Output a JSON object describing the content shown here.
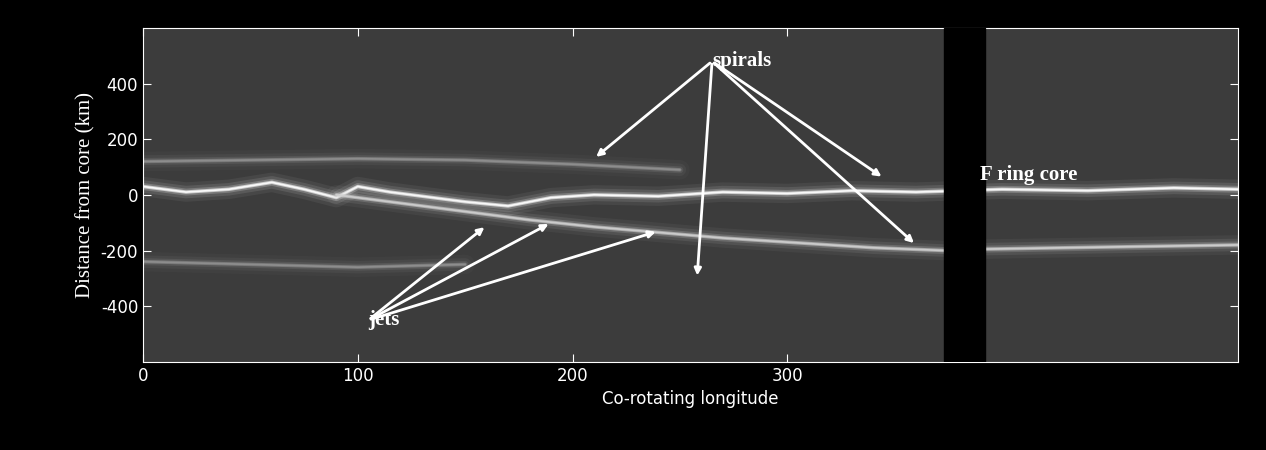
{
  "chart_data": {
    "type": "line",
    "xlabel": "Co-rotating longitude",
    "ylabel": "Distance from core (km)",
    "xlim": [
      0,
      510
    ],
    "xticks": [
      0,
      100,
      200,
      300
    ],
    "ylim": [
      -600,
      600
    ],
    "yticks": [
      -400,
      -200,
      0,
      200,
      400
    ],
    "gap": [
      373,
      392
    ],
    "color": "#ffffff",
    "series": [
      {
        "color": "#ffffff",
        "x": [
          0,
          20,
          40,
          60,
          75,
          90,
          100,
          115,
          130,
          150,
          170,
          190,
          210,
          240,
          270,
          300,
          330,
          360,
          400,
          440,
          480,
          510
        ],
        "values": [
          30,
          10,
          20,
          45,
          20,
          -10,
          30,
          10,
          -5,
          -25,
          -40,
          -10,
          0,
          -5,
          10,
          5,
          15,
          10,
          20,
          15,
          25,
          20
        ]
      },
      {
        "color": "#d0d0d0",
        "x": [
          90,
          120,
          150,
          180,
          210,
          240,
          270,
          300,
          340,
          373,
          392,
          430,
          470,
          510
        ],
        "values": [
          0,
          -30,
          -60,
          -90,
          -115,
          -135,
          -155,
          -170,
          -190,
          -200,
          -195,
          -190,
          -185,
          -180
        ]
      },
      {
        "color": "#909090",
        "x": [
          0,
          50,
          100,
          150,
          200,
          250
        ],
        "values": [
          120,
          125,
          130,
          125,
          110,
          90
        ]
      },
      {
        "color": "#909090",
        "x": [
          0,
          50,
          100,
          150
        ],
        "values": [
          -240,
          -250,
          -260,
          -250
        ]
      }
    ],
    "annotations": [
      {
        "text": "spirals",
        "x": 265,
        "y": 480,
        "targets": [
          [
            210,
            130
          ],
          [
            258,
            -300
          ],
          [
            345,
            60
          ],
          [
            360,
            -180
          ]
        ]
      },
      {
        "text": "jets",
        "x": 105,
        "y": -450,
        "targets": [
          [
            160,
            -110
          ],
          [
            190,
            -100
          ],
          [
            240,
            -130
          ]
        ]
      },
      {
        "text": "F ring core",
        "x": 390,
        "y": 72,
        "targets": []
      }
    ]
  }
}
